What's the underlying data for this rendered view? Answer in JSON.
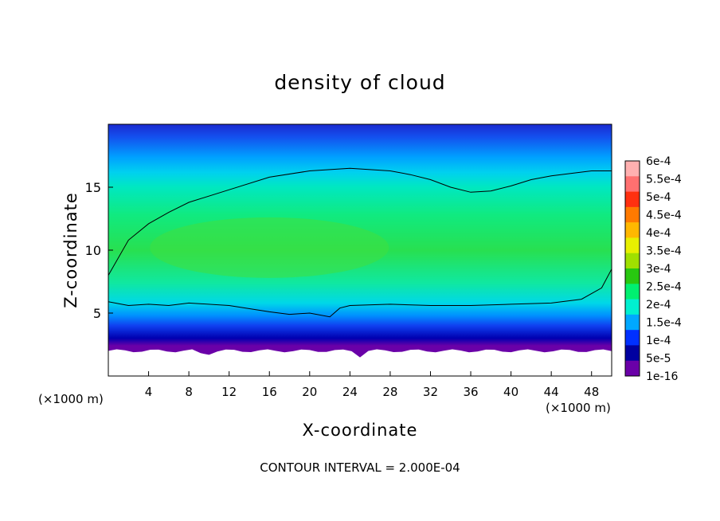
{
  "chart_data": {
    "type": "heatmap",
    "title": "density of cloud",
    "xlabel": "X-coordinate",
    "ylabel": "Z-coordinate",
    "x_unit": "(×1000 m)",
    "y_unit": "(×1000 m)",
    "footer": "CONTOUR INTERVAL = 2.000E-04",
    "xlim": [
      0,
      50
    ],
    "ylim": [
      0,
      20
    ],
    "x_ticks": [
      "4",
      "8",
      "12",
      "16",
      "20",
      "24",
      "28",
      "32",
      "36",
      "40",
      "44",
      "48"
    ],
    "y_ticks": [
      "5",
      "10",
      "15"
    ],
    "colorbar": {
      "labels": [
        "6e-4",
        "5.5e-4",
        "5e-4",
        "4.5e-4",
        "4e-4",
        "3.5e-4",
        "3e-4",
        "2.5e-4",
        "2e-4",
        "1.5e-4",
        "1e-4",
        "5e-5",
        "1e-16"
      ],
      "colors": [
        "#ffb0b0",
        "#ff7070",
        "#ff3010",
        "#ff7a00",
        "#ffb800",
        "#e8f000",
        "#a0e000",
        "#28c810",
        "#00f070",
        "#00f0d0",
        "#00a8ff",
        "#0030ff",
        "#0000a0",
        "#6a00a8"
      ]
    },
    "series": [
      {
        "name": "",
        "type": "contour_level",
        "level": 0.0002,
        "upper": {
          "x": [
            0,
            2,
            4,
            6,
            8,
            12,
            16,
            20,
            24,
            28,
            30,
            32,
            34,
            36,
            38,
            40,
            42,
            44,
            46,
            48,
            50
          ],
          "z": [
            8,
            10.8,
            12.1,
            13,
            13.8,
            14.8,
            15.8,
            16.3,
            16.5,
            16.3,
            16.0,
            15.6,
            15.0,
            14.6,
            14.7,
            15.1,
            15.6,
            15.9,
            16.1,
            16.3,
            16.3
          ]
        },
        "lower": {
          "x": [
            0,
            2,
            4,
            6,
            8,
            12,
            16,
            18,
            20,
            22,
            23,
            24,
            28,
            32,
            36,
            40,
            44,
            47,
            49,
            50
          ],
          "z": [
            5.9,
            5.6,
            5.7,
            5.6,
            5.8,
            5.6,
            5.1,
            4.9,
            5.0,
            4.7,
            5.4,
            5.6,
            5.7,
            5.6,
            5.6,
            5.7,
            5.8,
            6.1,
            7.0,
            8.5
          ]
        }
      }
    ]
  }
}
